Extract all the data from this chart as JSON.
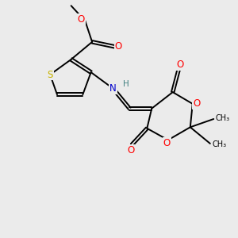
{
  "background_color": "#ebebeb",
  "atom_colors": {
    "S": "#c8b400",
    "O": "#ff0000",
    "N": "#0000cc",
    "C": "#000000",
    "H": "#408080"
  },
  "bond_color": "#000000",
  "lw": 1.4
}
